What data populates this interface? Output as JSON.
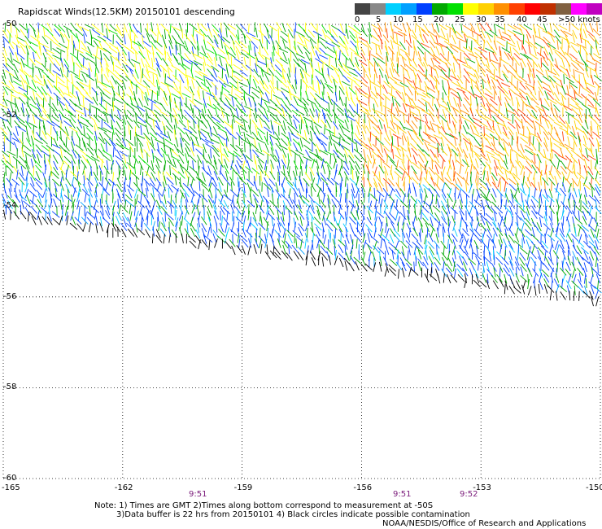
{
  "title": "Rapidscat Winds(12.5KM) 20150101 descending",
  "legend": {
    "tick_labels": [
      "0",
      "5",
      "10",
      "15",
      "20",
      "25",
      "30",
      "35",
      "40",
      "45",
      ">50 knots"
    ],
    "colors": [
      "#444444",
      "#888888",
      "#00d0ff",
      "#00a0ff",
      "#0040ff",
      "#00a800",
      "#00e000",
      "#ffff00",
      "#ffd000",
      "#ff9000",
      "#ff4000",
      "#ff0000",
      "#c03000",
      "#806040",
      "#ff00ff",
      "#c000c0",
      "#8000c0"
    ]
  },
  "map": {
    "lat_labels": [
      "-50",
      "-52",
      "-54",
      "-56",
      "-58",
      "-60"
    ],
    "lon_labels": [
      "-165",
      "-162",
      "-159",
      "-156",
      "-153",
      "-150"
    ],
    "lat_values": [
      -50,
      -52,
      -54,
      -56,
      -58,
      -60
    ],
    "lon_values": [
      -165,
      -162,
      -159,
      -156,
      -153,
      -150
    ]
  },
  "times": [
    "9:51",
    "9:51",
    "9:52"
  ],
  "notes": {
    "line1": "Note: 1) Times are GMT 2)Times along bottom correspond to measurement at -50S",
    "line2": "3)Data buffer is 22 hrs from 20150101 4) Black circles indicate possible contamination",
    "line3": "NOAA/NESDIS/Office of Research and Applications"
  }
}
